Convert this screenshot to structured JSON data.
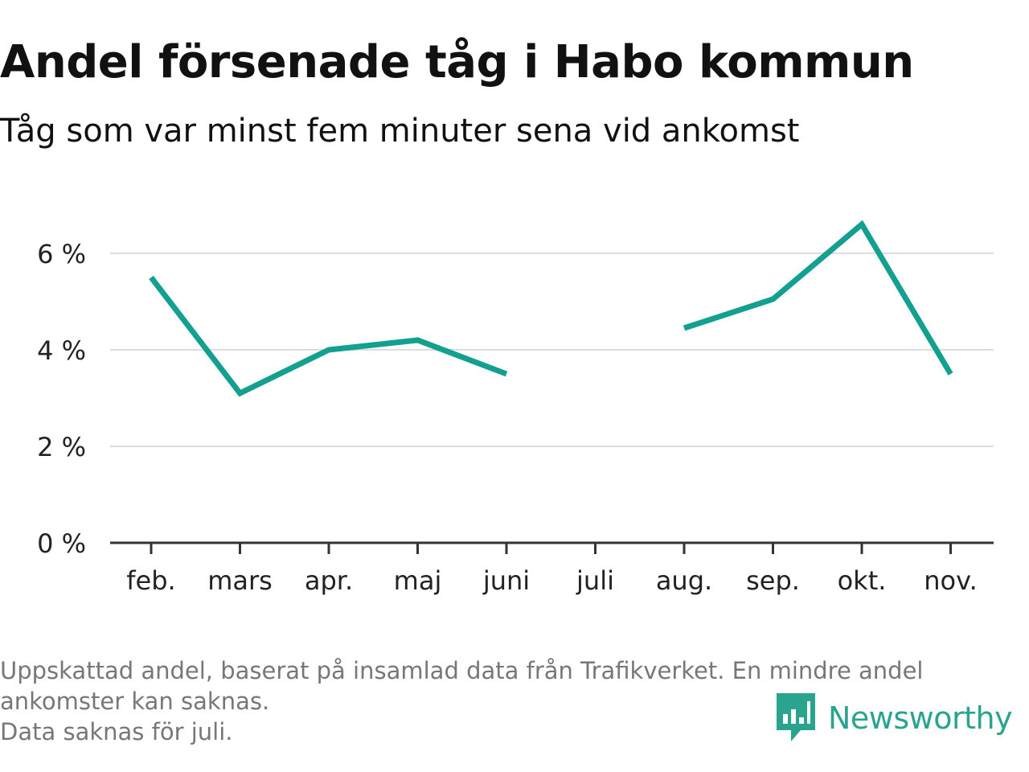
{
  "title": "Andel försenade tåg i Habo kommun",
  "subtitle": "Tåg som var minst fem minuter sena vid ankomst",
  "footnote": {
    "line1": "Uppskattad andel, baserat på insamlad data från Trafikverket. En mindre andel",
    "line2": "ankomster kan saknas.",
    "line3": "Data saknas för juli."
  },
  "brand": {
    "name": "Newsworthy",
    "icon": "newsworthy-logo-icon",
    "color": "#2aa38f"
  },
  "chart_data": {
    "type": "line",
    "title": "Andel försenade tåg i Habo kommun",
    "subtitle": "Tåg som var minst fem minuter sena vid ankomst",
    "xlabel": "",
    "ylabel": "",
    "categories": [
      "feb.",
      "mars",
      "apr.",
      "maj",
      "juni",
      "juli",
      "aug.",
      "sep.",
      "okt.",
      "nov."
    ],
    "series": [
      {
        "color": "#14a090",
        "values": [
          5.5,
          3.1,
          4.0,
          4.2,
          3.5,
          null,
          4.45,
          5.05,
          6.6,
          3.5
        ]
      }
    ],
    "yticks": [
      0,
      2,
      4,
      6
    ],
    "ytick_labels": [
      "0 %",
      "2 %",
      "4 %",
      "6 %"
    ],
    "ylim": [
      0,
      7
    ],
    "grid": true,
    "legend": "none",
    "colors": {
      "line": "#14a090",
      "grid": "#dddddd",
      "axis": "#333333"
    }
  }
}
